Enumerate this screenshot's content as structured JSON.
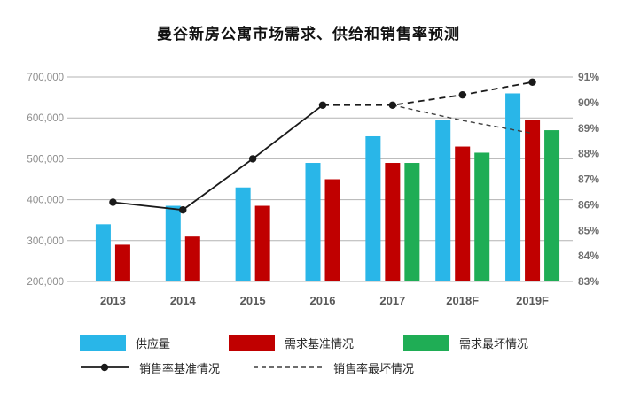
{
  "title": "曼谷新房公寓市场需求、供给和销售率预测",
  "chart_data": {
    "type": "bar",
    "subtype": "combo-bar-line-dual-axis",
    "categories": [
      "2013",
      "2014",
      "2015",
      "2016",
      "2017",
      "2018F",
      "2019F"
    ],
    "bar_series": [
      {
        "name": "供应量",
        "color": "#29b6e8",
        "values": [
          340000,
          385000,
          430000,
          490000,
          555000,
          595000,
          660000
        ]
      },
      {
        "name": "需求基准情况",
        "color": "#c00000",
        "values": [
          290000,
          310000,
          385000,
          450000,
          490000,
          530000,
          595000
        ]
      },
      {
        "name": "需求最坏情况",
        "color": "#1fad55",
        "values": [
          null,
          null,
          null,
          null,
          490000,
          515000,
          570000
        ]
      }
    ],
    "line_series": [
      {
        "name": "销售率基准情况",
        "color": "#1a1a1a",
        "marker": "dot",
        "style": "solid-then-dashed",
        "dashed_from_index": 3,
        "values": [
          86.1,
          85.8,
          87.8,
          89.9,
          89.9,
          90.3,
          90.8
        ]
      },
      {
        "name": "销售率最坏情况",
        "color": "#3d3d3d",
        "marker": "none",
        "style": "dashed",
        "values": [
          null,
          null,
          null,
          null,
          89.9,
          89.3,
          88.8
        ]
      }
    ],
    "left_axis": {
      "min": 200000,
      "max": 700000,
      "step": 100000,
      "ticks": [
        "700,000",
        "600,000",
        "500,000",
        "400,000",
        "300,000",
        "200,000"
      ]
    },
    "right_axis": {
      "min": 83,
      "max": 91,
      "step": 1,
      "ticks": [
        "91%",
        "90%",
        "89%",
        "88%",
        "87%",
        "86%",
        "85%",
        "84%",
        "83%"
      ]
    },
    "grid": true,
    "gridline_color": "#b3b3b3",
    "legend_position": "bottom"
  }
}
